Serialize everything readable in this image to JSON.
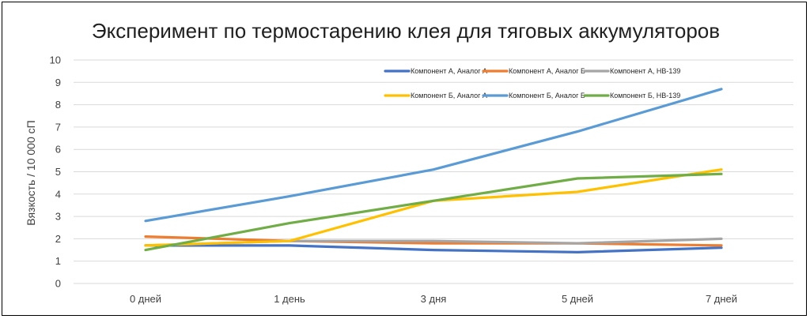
{
  "chart_data": {
    "type": "line",
    "title": "Эксперимент по термостарению клея для тяговых аккумуляторов",
    "xlabel": "",
    "ylabel": "Вязкость / 10 000 сП",
    "categories": [
      "0 дней",
      "1 день",
      "3 дня",
      "5 дней",
      "7 дней"
    ],
    "ylim": [
      0,
      10
    ],
    "yticks": [
      0,
      1,
      2,
      3,
      4,
      5,
      6,
      7,
      8,
      9,
      10
    ],
    "grid": true,
    "legend_position": "top-right",
    "series": [
      {
        "name": "Компонент А, Аналог А",
        "color": "#4472C4",
        "values": [
          1.7,
          1.7,
          1.5,
          1.4,
          1.6
        ]
      },
      {
        "name": "Компонент А, Аналог Б",
        "color": "#ED7D31",
        "values": [
          2.1,
          1.9,
          1.8,
          1.8,
          1.7
        ]
      },
      {
        "name": "Компонент А, НВ-139",
        "color": "#A5A5A5",
        "values": [
          1.7,
          1.9,
          1.9,
          1.8,
          2.0
        ]
      },
      {
        "name": "Компонент Б, Аналог А",
        "color": "#FFC000",
        "values": [
          1.7,
          1.9,
          3.7,
          4.1,
          5.1
        ]
      },
      {
        "name": "Компонент Б, Аналог Б",
        "color": "#5B9BD5",
        "values": [
          2.8,
          3.9,
          5.1,
          6.8,
          8.7
        ]
      },
      {
        "name": "Компонент Б, НВ-139",
        "color": "#70AD47",
        "values": [
          1.5,
          2.7,
          3.7,
          4.7,
          4.9
        ]
      }
    ]
  }
}
